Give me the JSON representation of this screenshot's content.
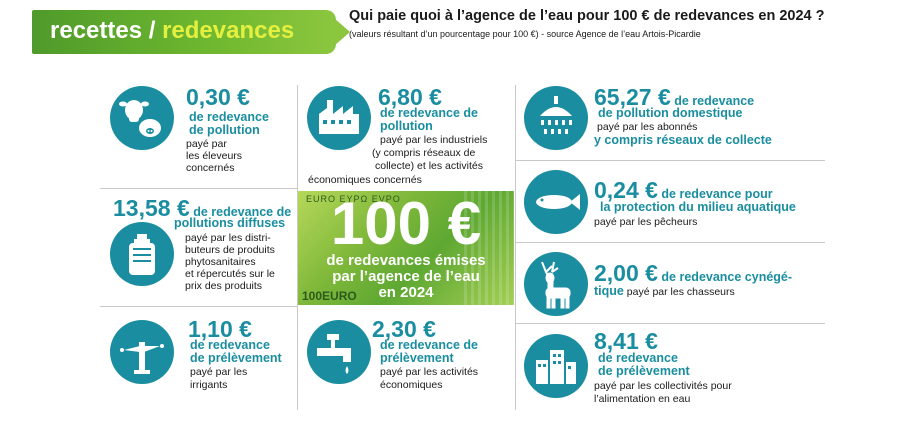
{
  "header": {
    "tab_left": "recettes / ",
    "tab_right": "redevances",
    "title": "Qui paie quoi à l’agence de l’eau pour 100 € de redevances en 2024 ?",
    "subtitle": "(valeurs résultant d’un pourcentage pour 100 €) - source Agence de l’eau Artois-Picardie"
  },
  "colors": {
    "accent": "#1a8ea0",
    "green": "#6fb82f",
    "header_highlight": "#e4f040"
  },
  "center": {
    "big": "100 €",
    "line1": "de redevances émises",
    "line2": "par l’agence de l’eau",
    "line3": "en 2024",
    "corner": "100EURO",
    "top": "EURO EYPΩ EVPO"
  },
  "items": {
    "eleveurs": {
      "icon": "cow-pig-icon",
      "amount": "0,30 €",
      "l1": "de redevance",
      "l2": "de pollution",
      "t1": "payé par",
      "t2": "les éleveurs",
      "t3": "concernés"
    },
    "industriels": {
      "icon": "factory-icon",
      "amount": "6,80 €",
      "l1": "de redevance de",
      "l2": "pollution",
      "t1": "payé par les industriels",
      "t2": "(y compris réseaux de",
      "t3": "collecte) et les activités",
      "t4": "économiques concernés"
    },
    "abonnes": {
      "icon": "shower-icon",
      "amount": "65,27 €",
      "l0": " de redevance",
      "l1": "de pollution domestique",
      "t1": "payé par les abonnés",
      "l2": "y compris réseaux de collecte"
    },
    "diffuses": {
      "icon": "chemical-container-icon",
      "amount": "13,58 €",
      "l0": " de redevance de",
      "l1": "pollutions diffuses",
      "t1": "payé par les distri-",
      "t2": "buteurs de produits",
      "t3": "phytosanitaires",
      "t4": "et répercutés sur le",
      "t5": "prix des produits"
    },
    "pecheurs": {
      "icon": "fish-icon",
      "amount": "0,24 €",
      "l0": " de redevance pour",
      "l1": "la protection du milieu aquatique",
      "t1": "payé par les pêcheurs"
    },
    "chasseurs": {
      "icon": "deer-icon",
      "amount": "2,00 €",
      "l0": " de redevance cynégé-",
      "l1": "tique",
      "t1": " payé par les chasseurs"
    },
    "irrigants": {
      "icon": "sprinkler-icon",
      "amount": "1,10 €",
      "l1": "de redevance",
      "l2": "de prélèvement",
      "t1": "payé par les",
      "t2": "irrigants"
    },
    "activites": {
      "icon": "faucet-icon",
      "amount": "2,30 €",
      "l1": "de redevance de",
      "l2": "prélèvement",
      "t1": "payé par les activités",
      "t2": "économiques"
    },
    "collectivites": {
      "icon": "buildings-icon",
      "amount": "8,41 €",
      "l1": "de redevance",
      "l2": "de prélèvement",
      "t1": "payé par les collectivités  pour",
      "t2": "l’alimentation en eau"
    }
  }
}
